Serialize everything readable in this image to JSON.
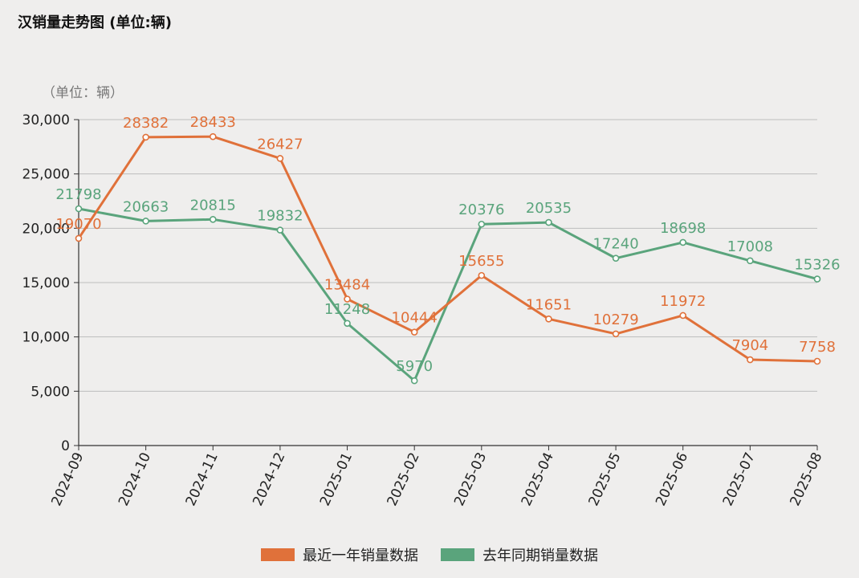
{
  "title": "汉销量走势图 (单位:辆)",
  "chart_data": {
    "type": "line",
    "unit_label": "（单位：辆）",
    "categories": [
      "2024-09",
      "2024-10",
      "2024-11",
      "2024-12",
      "2025-01",
      "2025-02",
      "2025-03",
      "2025-04",
      "2025-05",
      "2025-06",
      "2025-07",
      "2025-08"
    ],
    "y_ticks": [
      "0",
      "5,000",
      "10,000",
      "15,000",
      "20,000",
      "25,000",
      "30,000"
    ],
    "ylim": [
      0,
      30000
    ],
    "grid": true,
    "legend_position": "bottom",
    "series": [
      {
        "name": "最近一年销量数据",
        "color": "#e0713a",
        "values": [
          19070,
          28382,
          28433,
          26427,
          13484,
          10444,
          15655,
          11651,
          10279,
          11972,
          7904,
          7758
        ]
      },
      {
        "name": "去年同期销量数据",
        "color": "#5aa47c",
        "values": [
          21798,
          20663,
          20815,
          19832,
          11248,
          5970,
          20376,
          20535,
          17240,
          18698,
          17008,
          15326
        ]
      }
    ]
  }
}
